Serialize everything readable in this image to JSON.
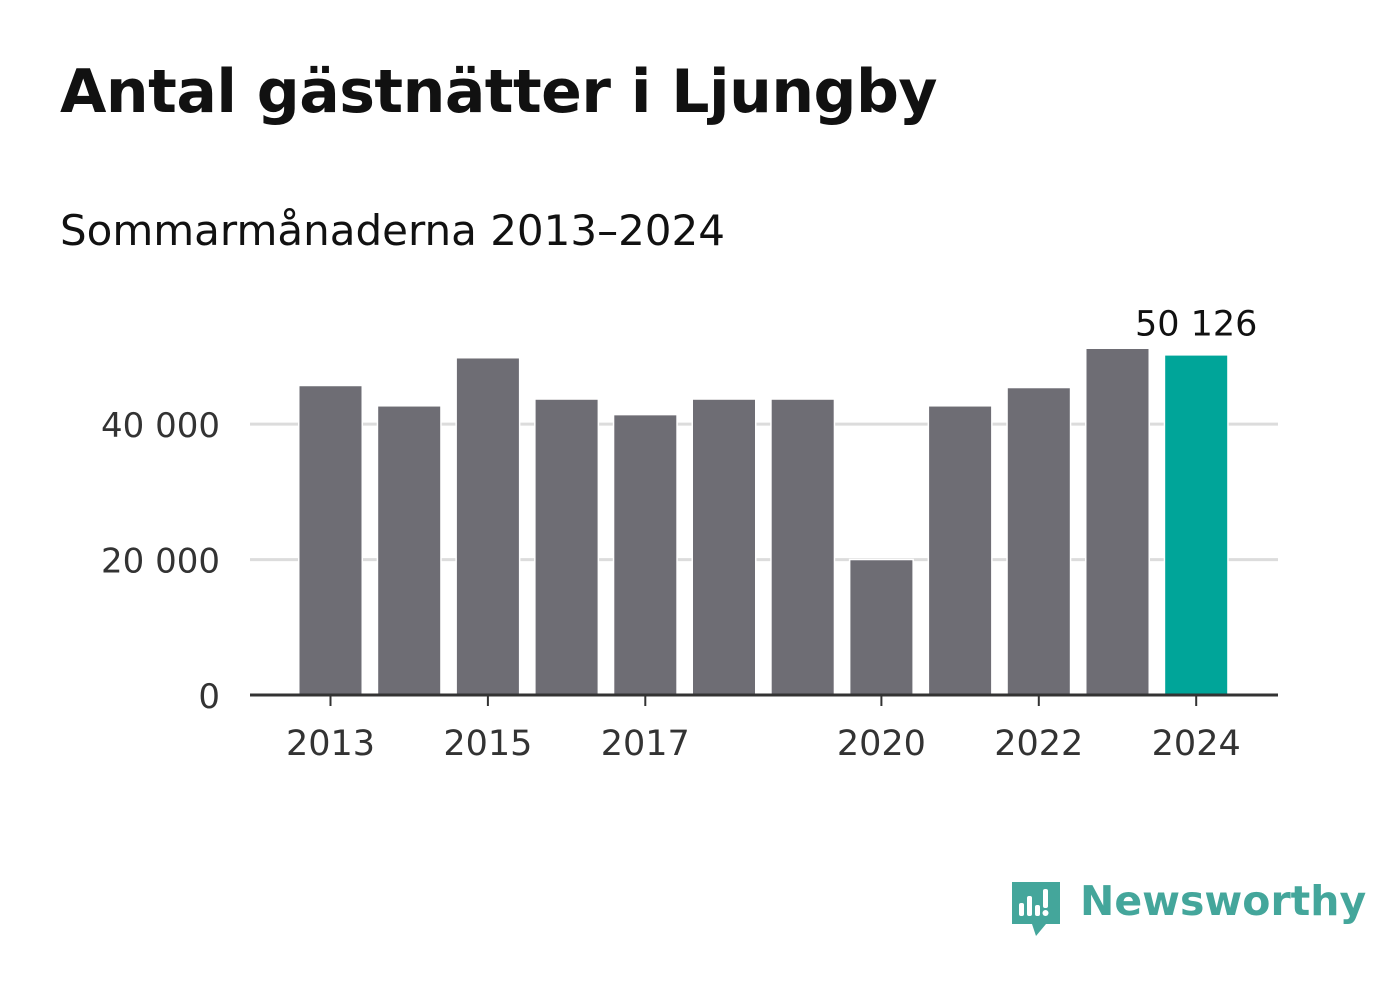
{
  "title": "Antal gästnätter i Ljungby",
  "subtitle": "Sommarmånaderna 2013–2024",
  "brand": {
    "name": "Newsworthy",
    "icon": "newsworthy-logo-icon",
    "color": "#44a69b"
  },
  "chart_data": {
    "type": "bar",
    "title": "Antal gästnätter i Ljungby",
    "subtitle": "Sommarmånaderna 2013–2024",
    "x": [
      2013,
      2014,
      2015,
      2016,
      2017,
      2018,
      2019,
      2020,
      2021,
      2022,
      2023,
      2024
    ],
    "values": [
      45600,
      42600,
      49700,
      43600,
      41300,
      43600,
      43600,
      19900,
      42600,
      45300,
      51100,
      50126
    ],
    "x_tick_labels": [
      "2013",
      "2015",
      "2017",
      "2020",
      "2022",
      "2024"
    ],
    "y_ticks": [
      0,
      20000,
      40000
    ],
    "y_tick_labels": [
      "0",
      "20 000",
      "40 000"
    ],
    "ylim": [
      0,
      51100
    ],
    "xlabel": "",
    "ylabel": "",
    "grid": true,
    "annotations": [
      {
        "x": 2024,
        "text": "50 126"
      }
    ],
    "colors": {
      "bar": "#6e6d74",
      "highlight": "#00a599",
      "grid": "#dcdcdc",
      "axis": "#333333",
      "tick_text": "#333333",
      "label_text": "#111111"
    }
  }
}
